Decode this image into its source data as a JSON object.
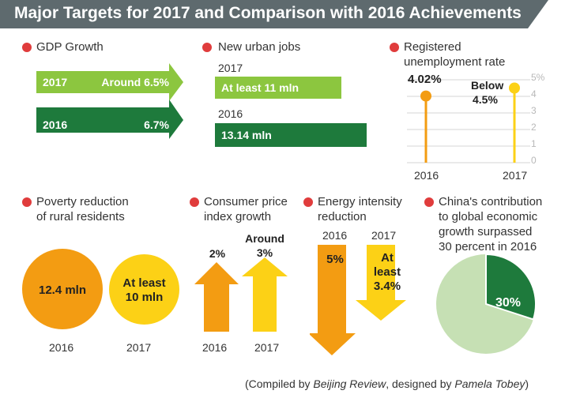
{
  "title": "Major Targets for 2017 and Comparison with 2016 Achievements",
  "colors": {
    "banner": "#5e6a6e",
    "light_green": "#8cc63f",
    "dark_green": "#1e7a3c",
    "orange": "#f39c12",
    "yellow": "#fcd116",
    "bullet_red": "#e03c3c",
    "pie_light": "#c6e0b4"
  },
  "gdp": {
    "title": "GDP Growth",
    "rows": [
      {
        "year": "2017",
        "label": "Around 6.5%"
      },
      {
        "year": "2016",
        "label": "6.7%"
      }
    ]
  },
  "jobs": {
    "title": "New urban jobs",
    "rows": [
      {
        "year": "2017",
        "label": "At least 11 mln"
      },
      {
        "year": "2016",
        "label": "13.14 mln"
      }
    ]
  },
  "unemployment": {
    "title_1": "Registered",
    "title_2": "unemployment rate",
    "ticks": [
      "5%",
      "4",
      "3",
      "2",
      "1",
      "0"
    ],
    "label_2016": "4.02%",
    "label_2017_1": "Below",
    "label_2017_2": "4.5%",
    "year_2016": "2016",
    "year_2017": "2017"
  },
  "poverty": {
    "title_1": "Poverty reduction",
    "title_2": "of rural residents",
    "label_2016": "12.4 mln",
    "label_2017_1": "At least",
    "label_2017_2": "10 mln",
    "year_2016": "2016",
    "year_2017": "2017"
  },
  "cpi": {
    "title_1": "Consumer price",
    "title_2": "index growth",
    "label_2016": "2%",
    "label_2017_1": "Around",
    "label_2017_2": "3%",
    "year_2016": "2016",
    "year_2017": "2017"
  },
  "energy": {
    "title_1": "Energy intensity",
    "title_2": "reduction",
    "year_2016": "2016",
    "year_2017": "2017",
    "label_2016": "5%",
    "label_2017_1": "At",
    "label_2017_2": "least",
    "label_2017_3": "3.4%"
  },
  "china": {
    "title_1": "China's contribution",
    "title_2": "to global economic",
    "title_3": "growth surpassed",
    "title_4": "30 percent in 2016",
    "pie_label": "30%"
  },
  "footer": {
    "prefix": "(Compiled by ",
    "source": "Beijing Review",
    "middle": ", designed by ",
    "designer": "Pamela Tobey",
    "suffix": ")"
  },
  "chart_data": [
    {
      "type": "bar",
      "name": "GDP Growth",
      "categories": [
        "2017",
        "2016"
      ],
      "values": [
        6.5,
        6.7
      ],
      "unit": "%"
    },
    {
      "type": "bar",
      "name": "New urban jobs",
      "categories": [
        "2017",
        "2016"
      ],
      "values": [
        11,
        13.14
      ],
      "unit": "mln"
    },
    {
      "type": "scatter",
      "name": "Registered unemployment rate",
      "categories": [
        "2016",
        "2017"
      ],
      "values": [
        4.02,
        4.5
      ],
      "ylim": [
        0,
        5
      ],
      "unit": "%"
    },
    {
      "type": "bar",
      "name": "Poverty reduction of rural residents",
      "categories": [
        "2016",
        "2017"
      ],
      "values": [
        12.4,
        10
      ],
      "unit": "mln"
    },
    {
      "type": "bar",
      "name": "Consumer price index growth",
      "categories": [
        "2016",
        "2017"
      ],
      "values": [
        2,
        3
      ],
      "unit": "%"
    },
    {
      "type": "bar",
      "name": "Energy intensity reduction",
      "categories": [
        "2016",
        "2017"
      ],
      "values": [
        5,
        3.4
      ],
      "unit": "%"
    },
    {
      "type": "pie",
      "name": "China's contribution to global economic growth",
      "values": [
        30,
        70
      ],
      "unit": "%"
    }
  ]
}
